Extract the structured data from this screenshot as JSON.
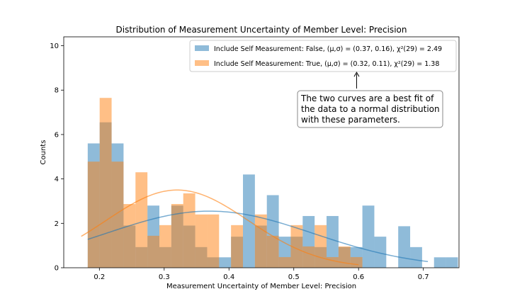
{
  "chart_data": {
    "type": "bar",
    "title": "Distribution of Measurement Uncertainty of Member Level: Precision",
    "xlabel": "Measurement Uncertainty of Member Level: Precision",
    "ylabel": "Counts",
    "xlim": [
      0.145,
      0.755
    ],
    "ylim": [
      0,
      10.4
    ],
    "xticks": [
      0.2,
      0.3,
      0.4,
      0.5,
      0.6,
      0.7
    ],
    "xtick_labels": [
      "0.2",
      "0.3",
      "0.4",
      "0.5",
      "0.6",
      "0.7"
    ],
    "yticks": [
      0,
      2,
      4,
      6,
      8,
      10
    ],
    "ytick_labels": [
      "0",
      "2",
      "4",
      "6",
      "8",
      "10"
    ],
    "grid": false,
    "legend_position": "top-right",
    "series": [
      {
        "name": "Include Self Measurement: False, (μ,σ) = (0.37, 0.16), χ²(29) = 2.49",
        "color": "#1f77b4",
        "opacity": 0.5,
        "bin_start": 0.182,
        "bin_width": 0.01843,
        "counts": [
          5.6,
          6.55,
          5.6,
          1.9,
          0.93,
          2.8,
          0.93,
          2.8,
          1.9,
          0.93,
          0.47,
          0.47,
          1.4,
          4.2,
          1.9,
          3.27,
          1.4,
          1.4,
          2.33,
          0.93,
          2.33,
          0.93,
          0.93,
          2.8,
          1.4,
          0,
          1.87,
          0.93,
          0,
          0.47,
          0.47
        ],
        "fit": {
          "mu": 0.37,
          "sigma": 0.16,
          "peak": 2.55,
          "x_range": [
            0.182,
            0.707
          ]
        }
      },
      {
        "name": "Include Self Measurement: True, (μ,σ) = (0.32, 0.11), χ²(29) = 1.38",
        "color": "#ff7f0e",
        "opacity": 0.5,
        "bin_start": 0.182,
        "bin_width": 0.01843,
        "counts": [
          4.78,
          7.65,
          4.78,
          2.87,
          4.3,
          1.44,
          1.92,
          2.87,
          3.35,
          2.4,
          2.4,
          0,
          1.92,
          0,
          2.4,
          1.44,
          0.48,
          1.92,
          0.96,
          1.92,
          0.48,
          0.96,
          0.48
        ],
        "fit": {
          "mu": 0.32,
          "sigma": 0.11,
          "peak": 3.5,
          "x_range": [
            0.172,
            0.6
          ]
        }
      }
    ],
    "annotation": {
      "text_lines": [
        "The two curves are a best fit of",
        "the data to a normal distribution",
        "with these parameters."
      ],
      "arrow_target": [
        0.597,
        8.8
      ]
    }
  }
}
